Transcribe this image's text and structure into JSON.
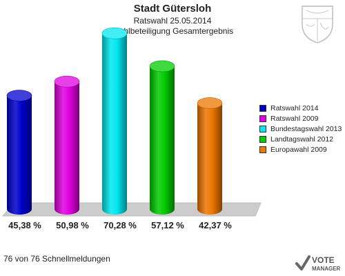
{
  "header": {
    "title": "Stadt Gütersloh",
    "subtitle": "Ratswahl 25.05.2014",
    "subtitle2": "Wahlbeteiligung Gesamtergebnis"
  },
  "footer": {
    "text": "76 von 76 Schnellmeldungen"
  },
  "brand": {
    "line1": "VOTE",
    "line2": "MANAGER"
  },
  "chart_data": {
    "type": "bar",
    "categories": [
      "Ratswahl 2014",
      "Ratswahl 2009",
      "Bundestagswahl 2013",
      "Landtagswahl 2012",
      "Europawahl 2009"
    ],
    "values": [
      45.38,
      50.98,
      70.28,
      57.12,
      42.37
    ],
    "value_labels": [
      "45,38 %",
      "50,98 %",
      "70,28 %",
      "57,12 %",
      "42,37 %"
    ],
    "colors": [
      "#0000cc",
      "#e000e0",
      "#00e8f0",
      "#00cc00",
      "#ee7700"
    ],
    "legend_position": "right",
    "legend": [
      "Ratswahl 2014",
      "Ratswahl 2009",
      "Bundestagswahl 2013",
      "Landtagswahl 2012",
      "Europawahl 2009"
    ],
    "grid": false
  }
}
